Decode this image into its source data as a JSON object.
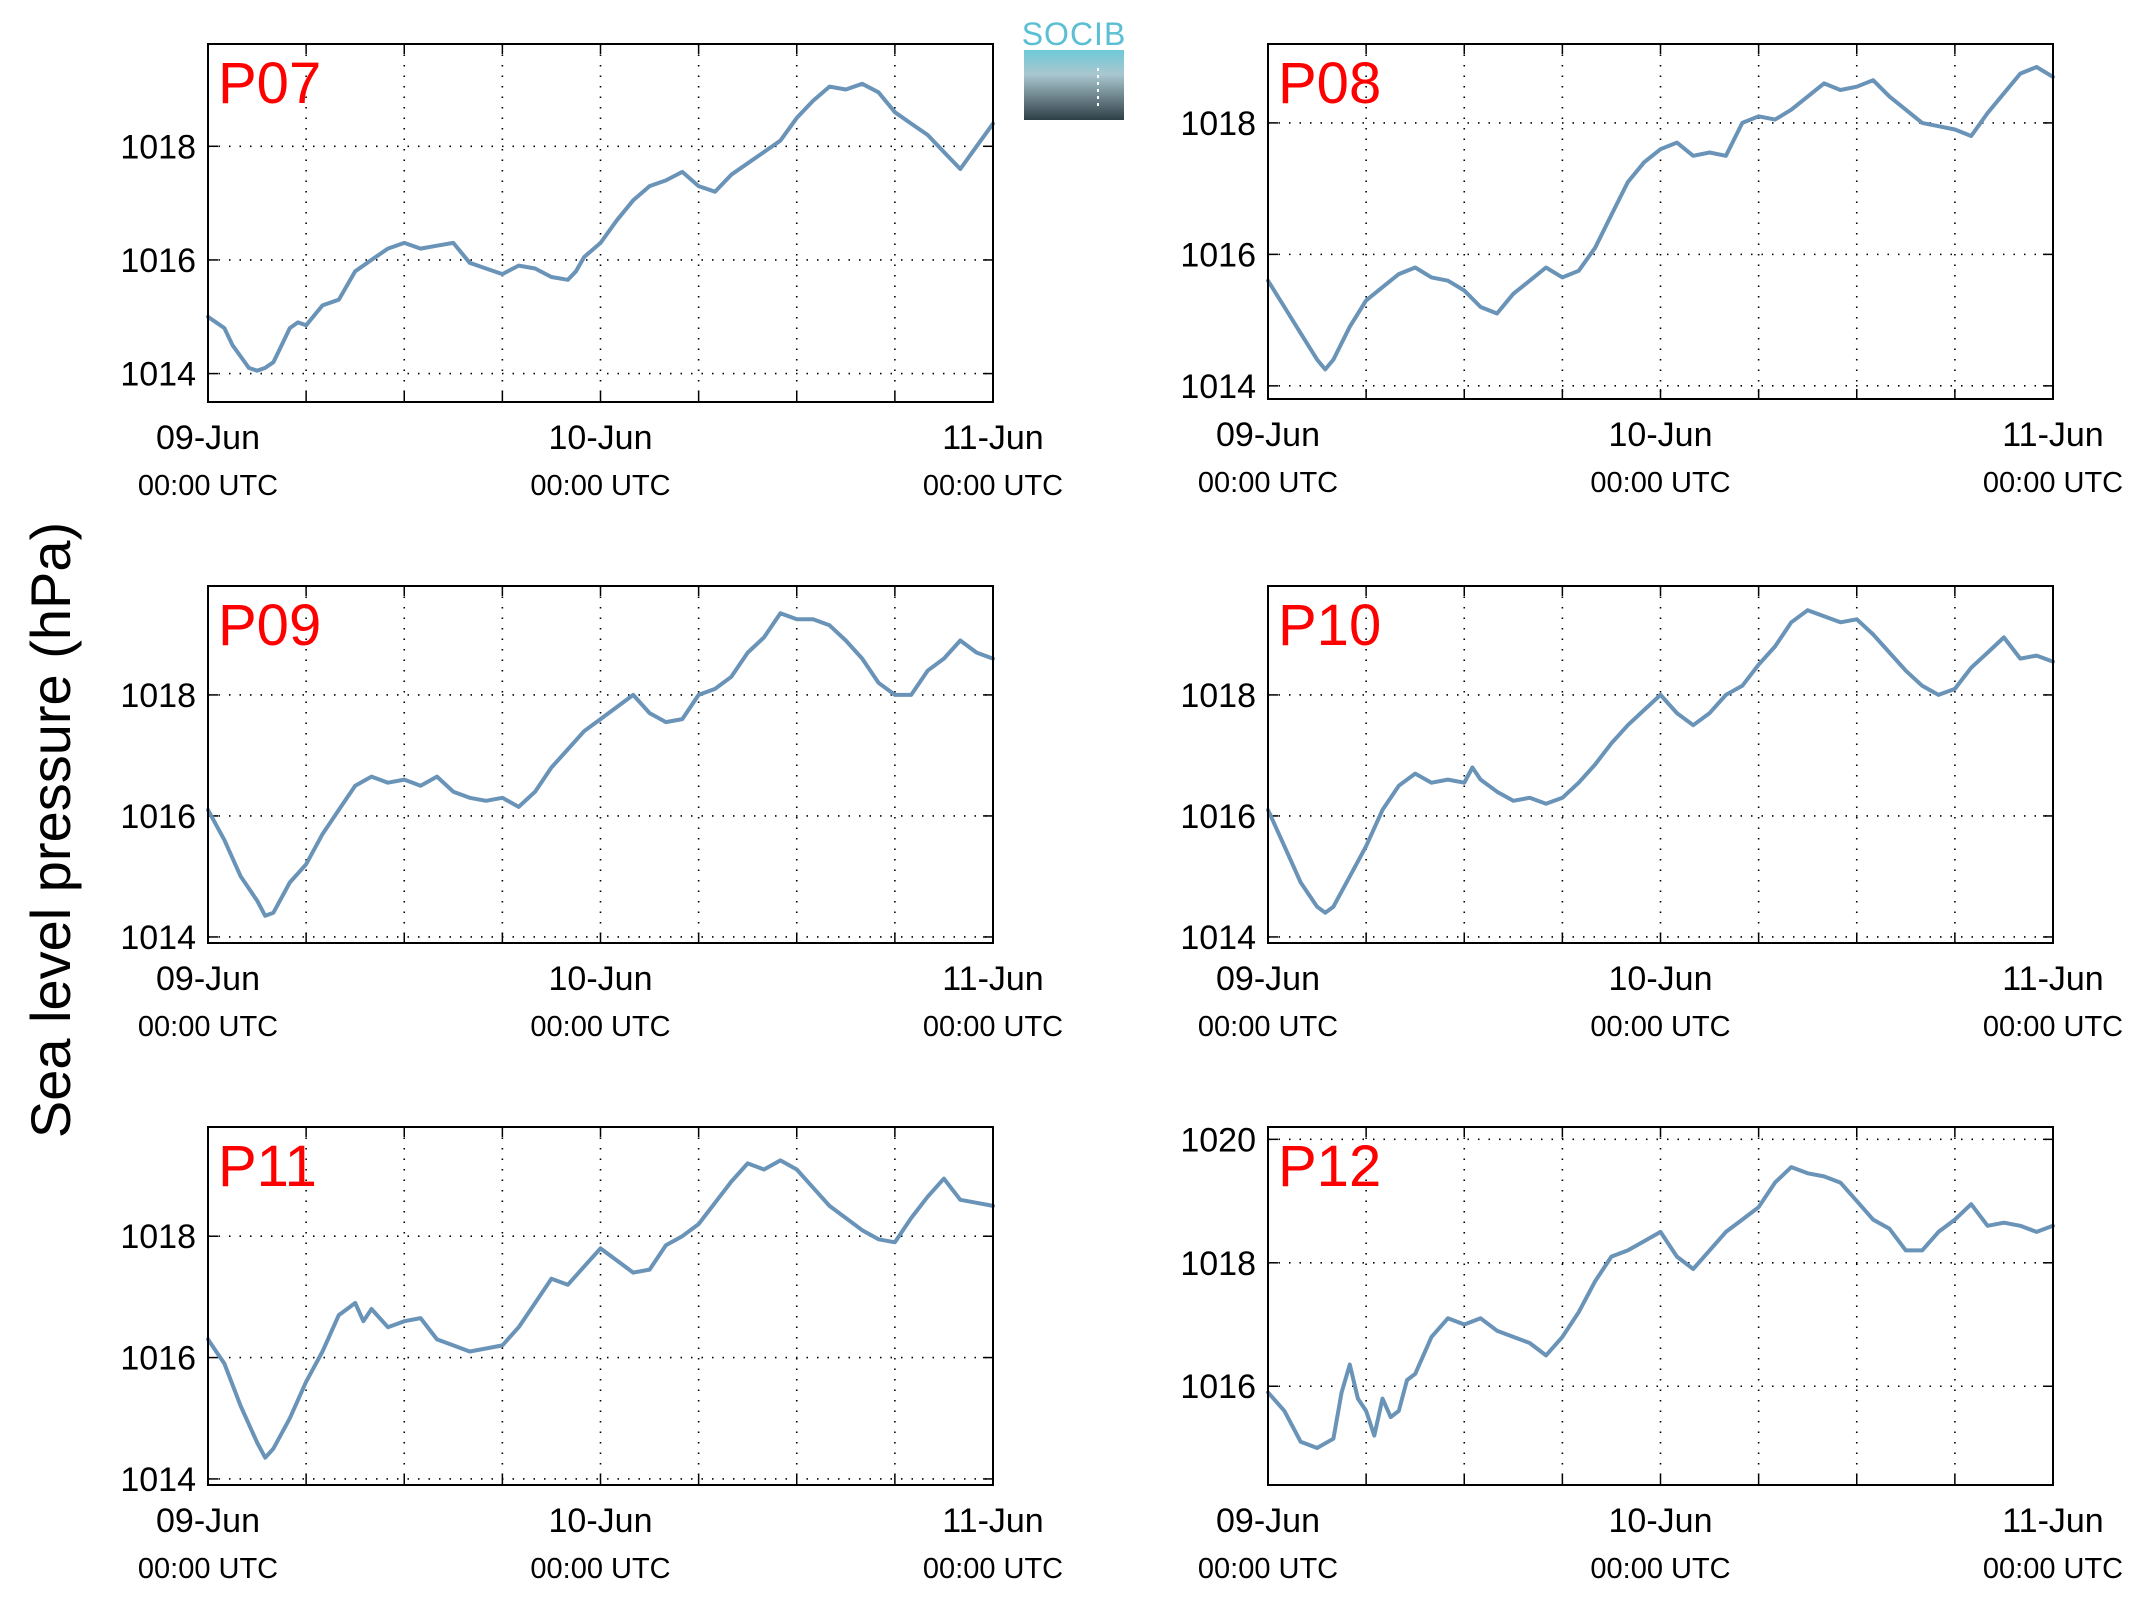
{
  "figure": {
    "ylabel": "Sea level pressure (hPa)",
    "logo_text": "SOCIB"
  },
  "style": {
    "series_color": "#6a93b8",
    "title_color": "#ff0000",
    "logo_top": "#5bbfd3",
    "logo_bottom": "#2f3e47"
  },
  "chart_data": [
    {
      "type": "line",
      "title": "P07",
      "x_unit": "hours since 09-Jun 00:00 UTC",
      "xlim": [
        0,
        48
      ],
      "xticks": [
        {
          "label": "09-Jun",
          "sub": "00:00 UTC"
        },
        {
          "label": "10-Jun",
          "sub": "00:00 UTC"
        },
        {
          "label": "11-Jun",
          "sub": "00:00 UTC"
        }
      ],
      "ylim": [
        1013.5,
        1019.8
      ],
      "yticks": [
        1014,
        1016,
        1018
      ],
      "grid": true,
      "series": [
        {
          "x": [
            0,
            1,
            1.5,
            2,
            2.5,
            3,
            3.5,
            4,
            4.5,
            5,
            5.5,
            6,
            7,
            8,
            9,
            10,
            11,
            12,
            13,
            14,
            15,
            16,
            17,
            18,
            19,
            20,
            21,
            22,
            22.5,
            23,
            24,
            25,
            26,
            27,
            28,
            29,
            30,
            31,
            32,
            33,
            34,
            35,
            36,
            37,
            38,
            39,
            40,
            41,
            42,
            43,
            44,
            45,
            46,
            47,
            48
          ],
          "y": [
            1015.0,
            1014.8,
            1014.5,
            1014.3,
            1014.1,
            1014.05,
            1014.1,
            1014.2,
            1014.5,
            1014.8,
            1014.9,
            1014.85,
            1015.2,
            1015.3,
            1015.8,
            1016.0,
            1016.2,
            1016.3,
            1016.2,
            1016.25,
            1016.3,
            1015.95,
            1015.85,
            1015.75,
            1015.9,
            1015.85,
            1015.7,
            1015.65,
            1015.8,
            1016.05,
            1016.3,
            1016.7,
            1017.05,
            1017.3,
            1017.4,
            1017.55,
            1017.3,
            1017.2,
            1017.5,
            1017.7,
            1017.9,
            1018.1,
            1018.5,
            1018.8,
            1019.05,
            1019.0,
            1019.1,
            1018.95,
            1018.6,
            1018.4,
            1018.2,
            1017.9,
            1017.6,
            1018.0,
            1018.4
          ]
        }
      ]
    },
    {
      "type": "line",
      "title": "P08",
      "x_unit": "hours since 09-Jun 00:00 UTC",
      "xlim": [
        0,
        48
      ],
      "xticks": [
        {
          "label": "09-Jun",
          "sub": "00:00 UTC"
        },
        {
          "label": "10-Jun",
          "sub": "00:00 UTC"
        },
        {
          "label": "11-Jun",
          "sub": "00:00 UTC"
        }
      ],
      "ylim": [
        1013.8,
        1019.2
      ],
      "yticks": [
        1014,
        1016,
        1018
      ],
      "grid": true,
      "series": [
        {
          "x": [
            0,
            1,
            2,
            3,
            3.5,
            4,
            5,
            6,
            7,
            8,
            9,
            10,
            11,
            12,
            13,
            14,
            15,
            16,
            17,
            18,
            19,
            20,
            21,
            22,
            23,
            24,
            25,
            26,
            27,
            28,
            29,
            30,
            31,
            32,
            33,
            34,
            35,
            36,
            37,
            38,
            39,
            40,
            41,
            42,
            43,
            44,
            45,
            46,
            47,
            48
          ],
          "y": [
            1015.6,
            1015.2,
            1014.8,
            1014.4,
            1014.25,
            1014.4,
            1014.9,
            1015.3,
            1015.5,
            1015.7,
            1015.8,
            1015.65,
            1015.6,
            1015.45,
            1015.2,
            1015.1,
            1015.4,
            1015.6,
            1015.8,
            1015.65,
            1015.75,
            1016.1,
            1016.6,
            1017.1,
            1017.4,
            1017.6,
            1017.7,
            1017.5,
            1017.55,
            1017.5,
            1018.0,
            1018.1,
            1018.05,
            1018.2,
            1018.4,
            1018.6,
            1018.5,
            1018.55,
            1018.65,
            1018.4,
            1018.2,
            1018.0,
            1017.95,
            1017.9,
            1017.8,
            1018.15,
            1018.45,
            1018.75,
            1018.85,
            1018.7
          ]
        }
      ]
    },
    {
      "type": "line",
      "title": "P09",
      "x_unit": "hours since 09-Jun 00:00 UTC",
      "xlim": [
        0,
        48
      ],
      "xticks": [
        {
          "label": "09-Jun",
          "sub": "00:00 UTC"
        },
        {
          "label": "10-Jun",
          "sub": "00:00 UTC"
        },
        {
          "label": "11-Jun",
          "sub": "00:00 UTC"
        }
      ],
      "ylim": [
        1013.9,
        1019.8
      ],
      "yticks": [
        1014,
        1016,
        1018
      ],
      "grid": true,
      "series": [
        {
          "x": [
            0,
            1,
            2,
            3,
            3.5,
            4,
            5,
            6,
            7,
            8,
            9,
            10,
            11,
            12,
            13,
            14,
            15,
            16,
            17,
            18,
            19,
            20,
            21,
            22,
            23,
            24,
            25,
            26,
            27,
            28,
            29,
            30,
            31,
            32,
            33,
            34,
            35,
            36,
            37,
            38,
            39,
            40,
            41,
            42,
            43,
            44,
            45,
            46,
            47,
            48
          ],
          "y": [
            1016.1,
            1015.6,
            1015.0,
            1014.6,
            1014.35,
            1014.4,
            1014.9,
            1015.2,
            1015.7,
            1016.1,
            1016.5,
            1016.65,
            1016.55,
            1016.6,
            1016.5,
            1016.65,
            1016.4,
            1016.3,
            1016.25,
            1016.3,
            1016.15,
            1016.4,
            1016.8,
            1017.1,
            1017.4,
            1017.6,
            1017.8,
            1018.0,
            1017.7,
            1017.55,
            1017.6,
            1018.0,
            1018.1,
            1018.3,
            1018.7,
            1018.95,
            1019.35,
            1019.25,
            1019.25,
            1019.15,
            1018.9,
            1018.6,
            1018.2,
            1018.0,
            1018.0,
            1018.4,
            1018.6,
            1018.9,
            1018.7,
            1018.6
          ]
        }
      ]
    },
    {
      "type": "line",
      "title": "P10",
      "x_unit": "hours since 09-Jun 00:00 UTC",
      "xlim": [
        0,
        48
      ],
      "xticks": [
        {
          "label": "09-Jun",
          "sub": "00:00 UTC"
        },
        {
          "label": "10-Jun",
          "sub": "00:00 UTC"
        },
        {
          "label": "11-Jun",
          "sub": "00:00 UTC"
        }
      ],
      "ylim": [
        1013.9,
        1019.8
      ],
      "yticks": [
        1014,
        1016,
        1018
      ],
      "grid": true,
      "series": [
        {
          "x": [
            0,
            1,
            2,
            3,
            3.5,
            4,
            5,
            6,
            7,
            8,
            9,
            10,
            11,
            12,
            12.5,
            13,
            14,
            15,
            16,
            17,
            18,
            19,
            20,
            21,
            22,
            23,
            24,
            25,
            26,
            27,
            28,
            29,
            30,
            31,
            32,
            33,
            34,
            35,
            36,
            37,
            38,
            39,
            40,
            41,
            42,
            43,
            44,
            45,
            46,
            47,
            48
          ],
          "y": [
            1016.1,
            1015.5,
            1014.9,
            1014.5,
            1014.4,
            1014.5,
            1015.0,
            1015.5,
            1016.1,
            1016.5,
            1016.7,
            1016.55,
            1016.6,
            1016.55,
            1016.8,
            1016.6,
            1016.4,
            1016.25,
            1016.3,
            1016.2,
            1016.3,
            1016.55,
            1016.85,
            1017.2,
            1017.5,
            1017.75,
            1018.0,
            1017.7,
            1017.5,
            1017.7,
            1018.0,
            1018.15,
            1018.5,
            1018.8,
            1019.2,
            1019.4,
            1019.3,
            1019.2,
            1019.25,
            1019.0,
            1018.7,
            1018.4,
            1018.15,
            1018.0,
            1018.1,
            1018.45,
            1018.7,
            1018.95,
            1018.6,
            1018.65,
            1018.55
          ]
        }
      ]
    },
    {
      "type": "line",
      "title": "P11",
      "x_unit": "hours since 09-Jun 00:00 UTC",
      "xlim": [
        0,
        48
      ],
      "xticks": [
        {
          "label": "09-Jun",
          "sub": "00:00 UTC"
        },
        {
          "label": "10-Jun",
          "sub": "00:00 UTC"
        },
        {
          "label": "11-Jun",
          "sub": "00:00 UTC"
        }
      ],
      "ylim": [
        1013.9,
        1019.8
      ],
      "yticks": [
        1014,
        1016,
        1018
      ],
      "grid": true,
      "series": [
        {
          "x": [
            0,
            1,
            2,
            3,
            3.5,
            4,
            5,
            6,
            7,
            8,
            9,
            9.5,
            10,
            11,
            12,
            13,
            14,
            15,
            16,
            17,
            18,
            19,
            20,
            21,
            22,
            23,
            24,
            25,
            26,
            27,
            28,
            29,
            30,
            31,
            32,
            33,
            34,
            35,
            36,
            37,
            38,
            39,
            40,
            41,
            42,
            43,
            44,
            45,
            46,
            47,
            48
          ],
          "y": [
            1016.3,
            1015.9,
            1015.2,
            1014.6,
            1014.35,
            1014.5,
            1015.0,
            1015.6,
            1016.1,
            1016.7,
            1016.9,
            1016.6,
            1016.8,
            1016.5,
            1016.6,
            1016.65,
            1016.3,
            1016.2,
            1016.1,
            1016.15,
            1016.2,
            1016.5,
            1016.9,
            1017.3,
            1017.2,
            1017.5,
            1017.8,
            1017.6,
            1017.4,
            1017.45,
            1017.85,
            1018.0,
            1018.2,
            1018.55,
            1018.9,
            1019.2,
            1019.1,
            1019.25,
            1019.1,
            1018.8,
            1018.5,
            1018.3,
            1018.1,
            1017.95,
            1017.9,
            1018.3,
            1018.65,
            1018.95,
            1018.6,
            1018.55,
            1018.5
          ]
        }
      ]
    },
    {
      "type": "line",
      "title": "P12",
      "x_unit": "hours since 09-Jun 00:00 UTC",
      "xlim": [
        0,
        48
      ],
      "xticks": [
        {
          "label": "09-Jun",
          "sub": "00:00 UTC"
        },
        {
          "label": "10-Jun",
          "sub": "00:00 UTC"
        },
        {
          "label": "11-Jun",
          "sub": "00:00 UTC"
        }
      ],
      "ylim": [
        1014.4,
        1020.2
      ],
      "yticks": [
        1016,
        1018,
        1020
      ],
      "grid": true,
      "series": [
        {
          "x": [
            0,
            1,
            2,
            3,
            4,
            4.5,
            5,
            5.5,
            6,
            6.5,
            7,
            7.5,
            8,
            8.5,
            9,
            10,
            11,
            12,
            13,
            14,
            15,
            16,
            17,
            18,
            19,
            20,
            21,
            22,
            23,
            24,
            25,
            26,
            27,
            28,
            29,
            30,
            31,
            32,
            33,
            34,
            35,
            36,
            37,
            38,
            39,
            40,
            41,
            42,
            43,
            44,
            45,
            46,
            47,
            48
          ],
          "y": [
            1015.9,
            1015.6,
            1015.1,
            1015.0,
            1015.15,
            1015.9,
            1016.35,
            1015.8,
            1015.6,
            1015.2,
            1015.8,
            1015.5,
            1015.6,
            1016.1,
            1016.2,
            1016.8,
            1017.1,
            1017.0,
            1017.1,
            1016.9,
            1016.8,
            1016.7,
            1016.5,
            1016.8,
            1017.2,
            1017.7,
            1018.1,
            1018.2,
            1018.35,
            1018.5,
            1018.1,
            1017.9,
            1018.2,
            1018.5,
            1018.7,
            1018.9,
            1019.3,
            1019.55,
            1019.45,
            1019.4,
            1019.3,
            1019.0,
            1018.7,
            1018.55,
            1018.2,
            1018.2,
            1018.5,
            1018.7,
            1018.95,
            1018.6,
            1018.65,
            1018.6,
            1018.5,
            1018.6
          ]
        }
      ]
    }
  ]
}
